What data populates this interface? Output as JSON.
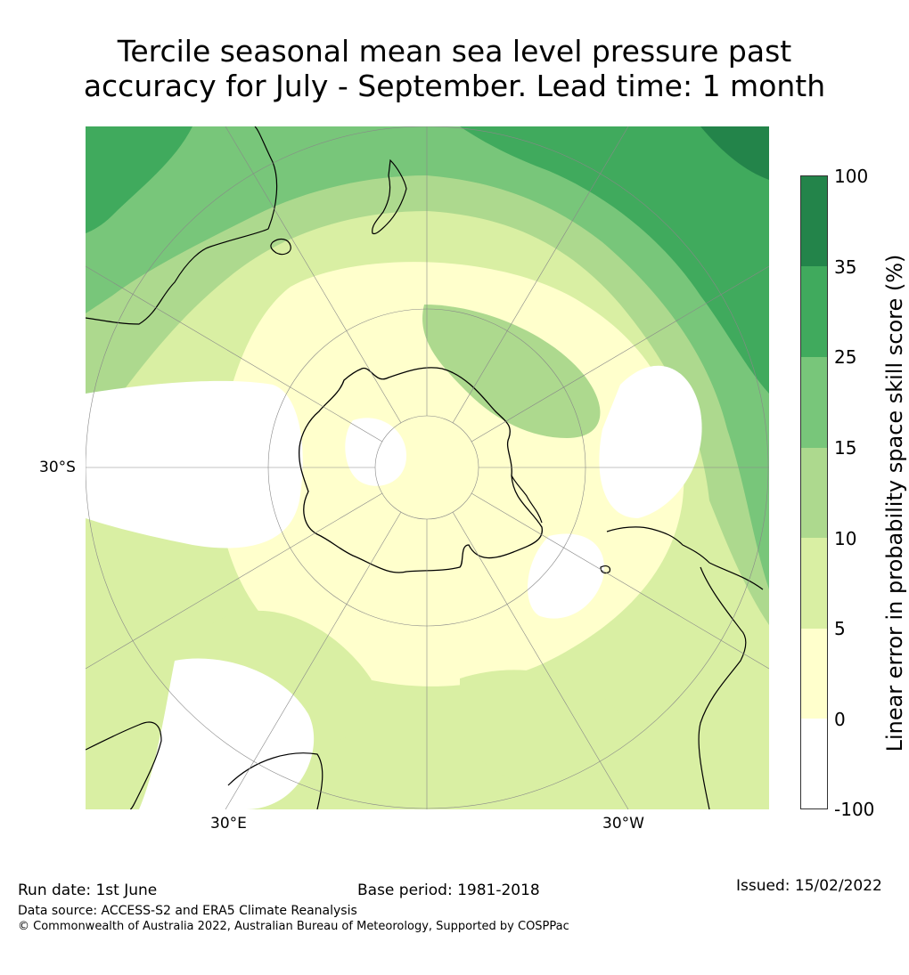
{
  "title": {
    "line1": "Tercile seasonal mean sea level pressure past",
    "line2": "accuracy for July - September. Lead time: 1 month"
  },
  "map": {
    "projection": "south-polar-stereographic",
    "graticule_labels": {
      "lat": "30°S",
      "lon_left": "30°E",
      "lon_right": "30°W"
    },
    "field_description": "skill score shading over Southern Hemisphere",
    "land_outline_color": "#000000"
  },
  "colorbar": {
    "label": "Linear error in probability space skill score (%)",
    "ticks": [
      "100",
      "35",
      "25",
      "15",
      "10",
      "5",
      "0",
      "-100"
    ],
    "bins": [
      {
        "range": "35 to 100",
        "color": "#23844a"
      },
      {
        "range": "25 to 35",
        "color": "#40aa5d"
      },
      {
        "range": "15 to 25",
        "color": "#78c67a"
      },
      {
        "range": "10 to 15",
        "color": "#add98e"
      },
      {
        "range": "5 to 10",
        "color": "#d9efa3"
      },
      {
        "range": "0 to 5",
        "color": "#ffffcc"
      },
      {
        "range": "-100 to 0",
        "color": "#ffffff"
      }
    ]
  },
  "footer": {
    "run_date": "Run date: 1st June",
    "base_period": "Base period: 1981-2018",
    "issued": "Issued: 15/02/2022",
    "data_source": "Data source: ACCESS-S2 and ERA5 Climate Reanalysis",
    "copyright": "© Commonwealth of Australia 2022, Australian Bureau of Meteorology, Supported by COSPPac"
  }
}
